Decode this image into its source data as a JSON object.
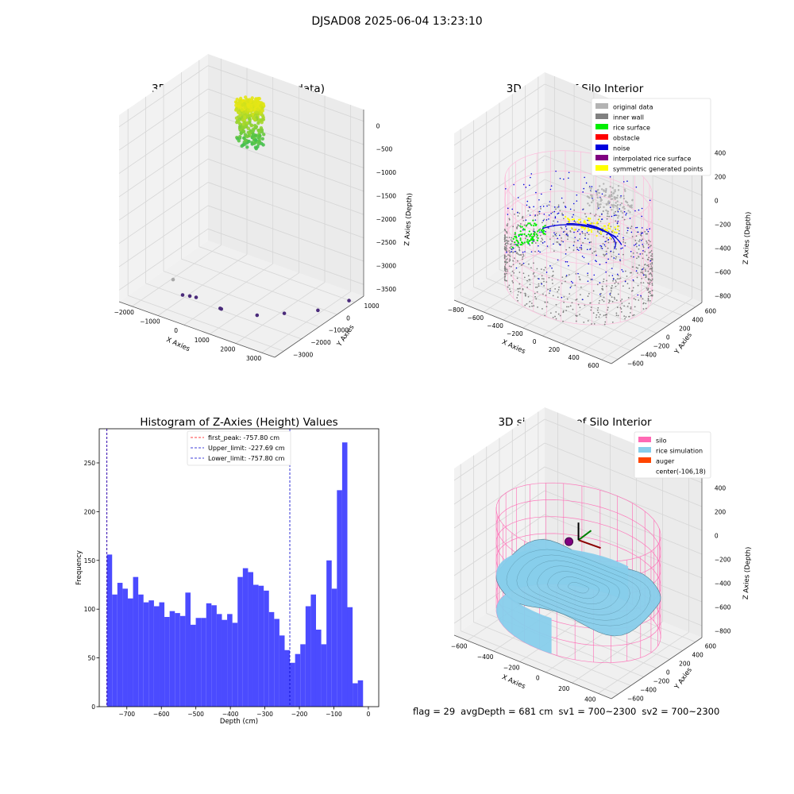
{
  "suptitle": "DJSAD08 2025-06-04 13:23:10",
  "footer": {
    "flag": "flag = 29",
    "avg_depth": "avgDepth = 681 cm",
    "sv1": "sv1 = 700~2300",
    "sv2": "sv2 = 700~2300"
  },
  "colors": {
    "original": "#b3b3b3",
    "inner_wall": "#808080",
    "rice_surface": "#00ee00",
    "obstacle": "#ff0000",
    "noise": "#0000dd",
    "interpolated": "#800080",
    "symmetric": "#ffff00",
    "silo": "#ff69b4",
    "rice_sim": "#87ceeb",
    "auger": "#ff4500",
    "hist_bar": "#4b4bff",
    "peak_line": "#ff0000",
    "limit_line": "#0000cc"
  },
  "chart_data": [
    {
      "id": "raw",
      "type": "scatter",
      "title": "3D Plot of Silo Interior(row data)",
      "xlabel": "X Axies",
      "ylabel": "Y Axies",
      "zlabel": "Z Axies (Depth)",
      "xticks": [
        "−2000",
        "−1000",
        "0",
        "1000",
        "2000",
        "3000"
      ],
      "yticks": [
        "1000",
        "0",
        "−1000",
        "−2000",
        "−3000"
      ],
      "zticks": [
        "0",
        "−500",
        "−1000",
        "−1500",
        "−2000",
        "−2500",
        "−3000",
        "−3500"
      ],
      "xlim": [
        -2600,
        3200
      ],
      "ylim": [
        -3400,
        1400
      ],
      "zlim": [
        -3800,
        200
      ],
      "outliers": [
        {
          "x": -1900,
          "y": -1500,
          "z": -3700
        },
        {
          "x": -1200,
          "y": -2000,
          "z": -3750
        },
        {
          "x": -1000,
          "y": -1900,
          "z": -3760
        },
        {
          "x": -800,
          "y": -1850,
          "z": -3760
        },
        {
          "x": 200,
          "y": -2000,
          "z": -3750
        },
        {
          "x": 250,
          "y": -2010,
          "z": -3750
        },
        {
          "x": 1300,
          "y": -1600,
          "z": -3780
        },
        {
          "x": 1900,
          "y": -1000,
          "z": -3780
        },
        {
          "x": 2600,
          "y": -200,
          "z": -3790
        },
        {
          "x": 3000,
          "y": 900,
          "z": -3800
        }
      ],
      "cluster": {
        "cx": -150,
        "cy": 100,
        "r": 450,
        "z_top": 0,
        "z_bottom": -900
      }
    },
    {
      "id": "classify",
      "type": "scatter",
      "title": "3D classify of Silo Interior",
      "xlabel": "X Axies",
      "ylabel": "Y Axies",
      "zlabel": "Z Axies (Depth)",
      "xticks": [
        "−800",
        "−600",
        "−400",
        "−200",
        "0",
        "200",
        "400",
        "600"
      ],
      "yticks": [
        "600",
        "400",
        "200",
        "0",
        "−200",
        "−400",
        "−600"
      ],
      "zticks": [
        "400",
        "200",
        "0",
        "−200",
        "−400",
        "−600",
        "−800"
      ],
      "xlim": [
        -850,
        650
      ],
      "ylim": [
        -700,
        700
      ],
      "zlim": [
        -950,
        450
      ],
      "legend": [
        {
          "label": "original data",
          "color_key": "original"
        },
        {
          "label": "inner wall",
          "color_key": "inner_wall"
        },
        {
          "label": "rice surface",
          "color_key": "rice_surface"
        },
        {
          "label": "obstacle",
          "color_key": "obstacle"
        },
        {
          "label": "noise",
          "color_key": "noise"
        },
        {
          "label": "interpolated rice surface",
          "color_key": "interpolated"
        },
        {
          "label": "symmetric generated points",
          "color_key": "symmetric"
        }
      ],
      "silo": {
        "cx": -106,
        "cy": 18,
        "r": 600,
        "z_top": 0,
        "z_bottom": -850
      }
    },
    {
      "id": "hist",
      "type": "bar",
      "title": "Histogram of Z-Axies (Height) Values",
      "xlabel": "Depth (cm)",
      "ylabel": "Frequency",
      "xlim": [
        -780,
        30
      ],
      "ylim": [
        0,
        285
      ],
      "xticks": [
        -700,
        -600,
        -500,
        -400,
        -300,
        -200,
        -100,
        0
      ],
      "yticks": [
        0,
        50,
        100,
        150,
        200,
        250
      ],
      "bin_start": -757.8,
      "bin_width": 15.15,
      "values": [
        156,
        115,
        127,
        121,
        111,
        133,
        115,
        107,
        109,
        103,
        107,
        92,
        98,
        96,
        93,
        117,
        84,
        91,
        91,
        106,
        104,
        95,
        89,
        95,
        86,
        133,
        142,
        138,
        125,
        124,
        119,
        97,
        90,
        73,
        58,
        45,
        54,
        64,
        103,
        115,
        79,
        64,
        150,
        121,
        222,
        271,
        102,
        24,
        27
      ],
      "lines": [
        {
          "label": "first_peak: -757.80 cm",
          "x": -757.8,
          "color_key": "peak_line"
        },
        {
          "label": "Upper_limit: -227.69 cm",
          "x": -227.69,
          "color_key": "limit_line"
        },
        {
          "label": "Lower_limit: -757.80 cm",
          "x": -757.8,
          "color_key": "limit_line"
        }
      ]
    },
    {
      "id": "sim",
      "type": "surface",
      "title": "3D simulation of Silo Interior",
      "xlabel": "X Axies",
      "ylabel": "Y Axies",
      "zlabel": "Z Axies (Depth)",
      "xticks": [
        "−600",
        "−400",
        "−200",
        "0",
        "200",
        "400"
      ],
      "yticks": [
        "600",
        "400",
        "200",
        "0",
        "−200",
        "−400",
        "−600"
      ],
      "zticks": [
        "400",
        "200",
        "0",
        "−200",
        "−400",
        "−600",
        "−800"
      ],
      "xlim": [
        -750,
        550
      ],
      "ylim": [
        -700,
        700
      ],
      "zlim": [
        -950,
        450
      ],
      "legend": [
        {
          "label": "silo",
          "color_key": "silo"
        },
        {
          "label": "rice simulation",
          "color_key": "rice_sim"
        },
        {
          "label": "auger",
          "color_key": "auger"
        },
        {
          "label": "center(-106,18)",
          "color_key": ""
        }
      ],
      "silo": {
        "cx": -106,
        "cy": 18,
        "r": 600,
        "z_top": 0,
        "z_bottom": -850
      },
      "rice_level": -550
    }
  ]
}
